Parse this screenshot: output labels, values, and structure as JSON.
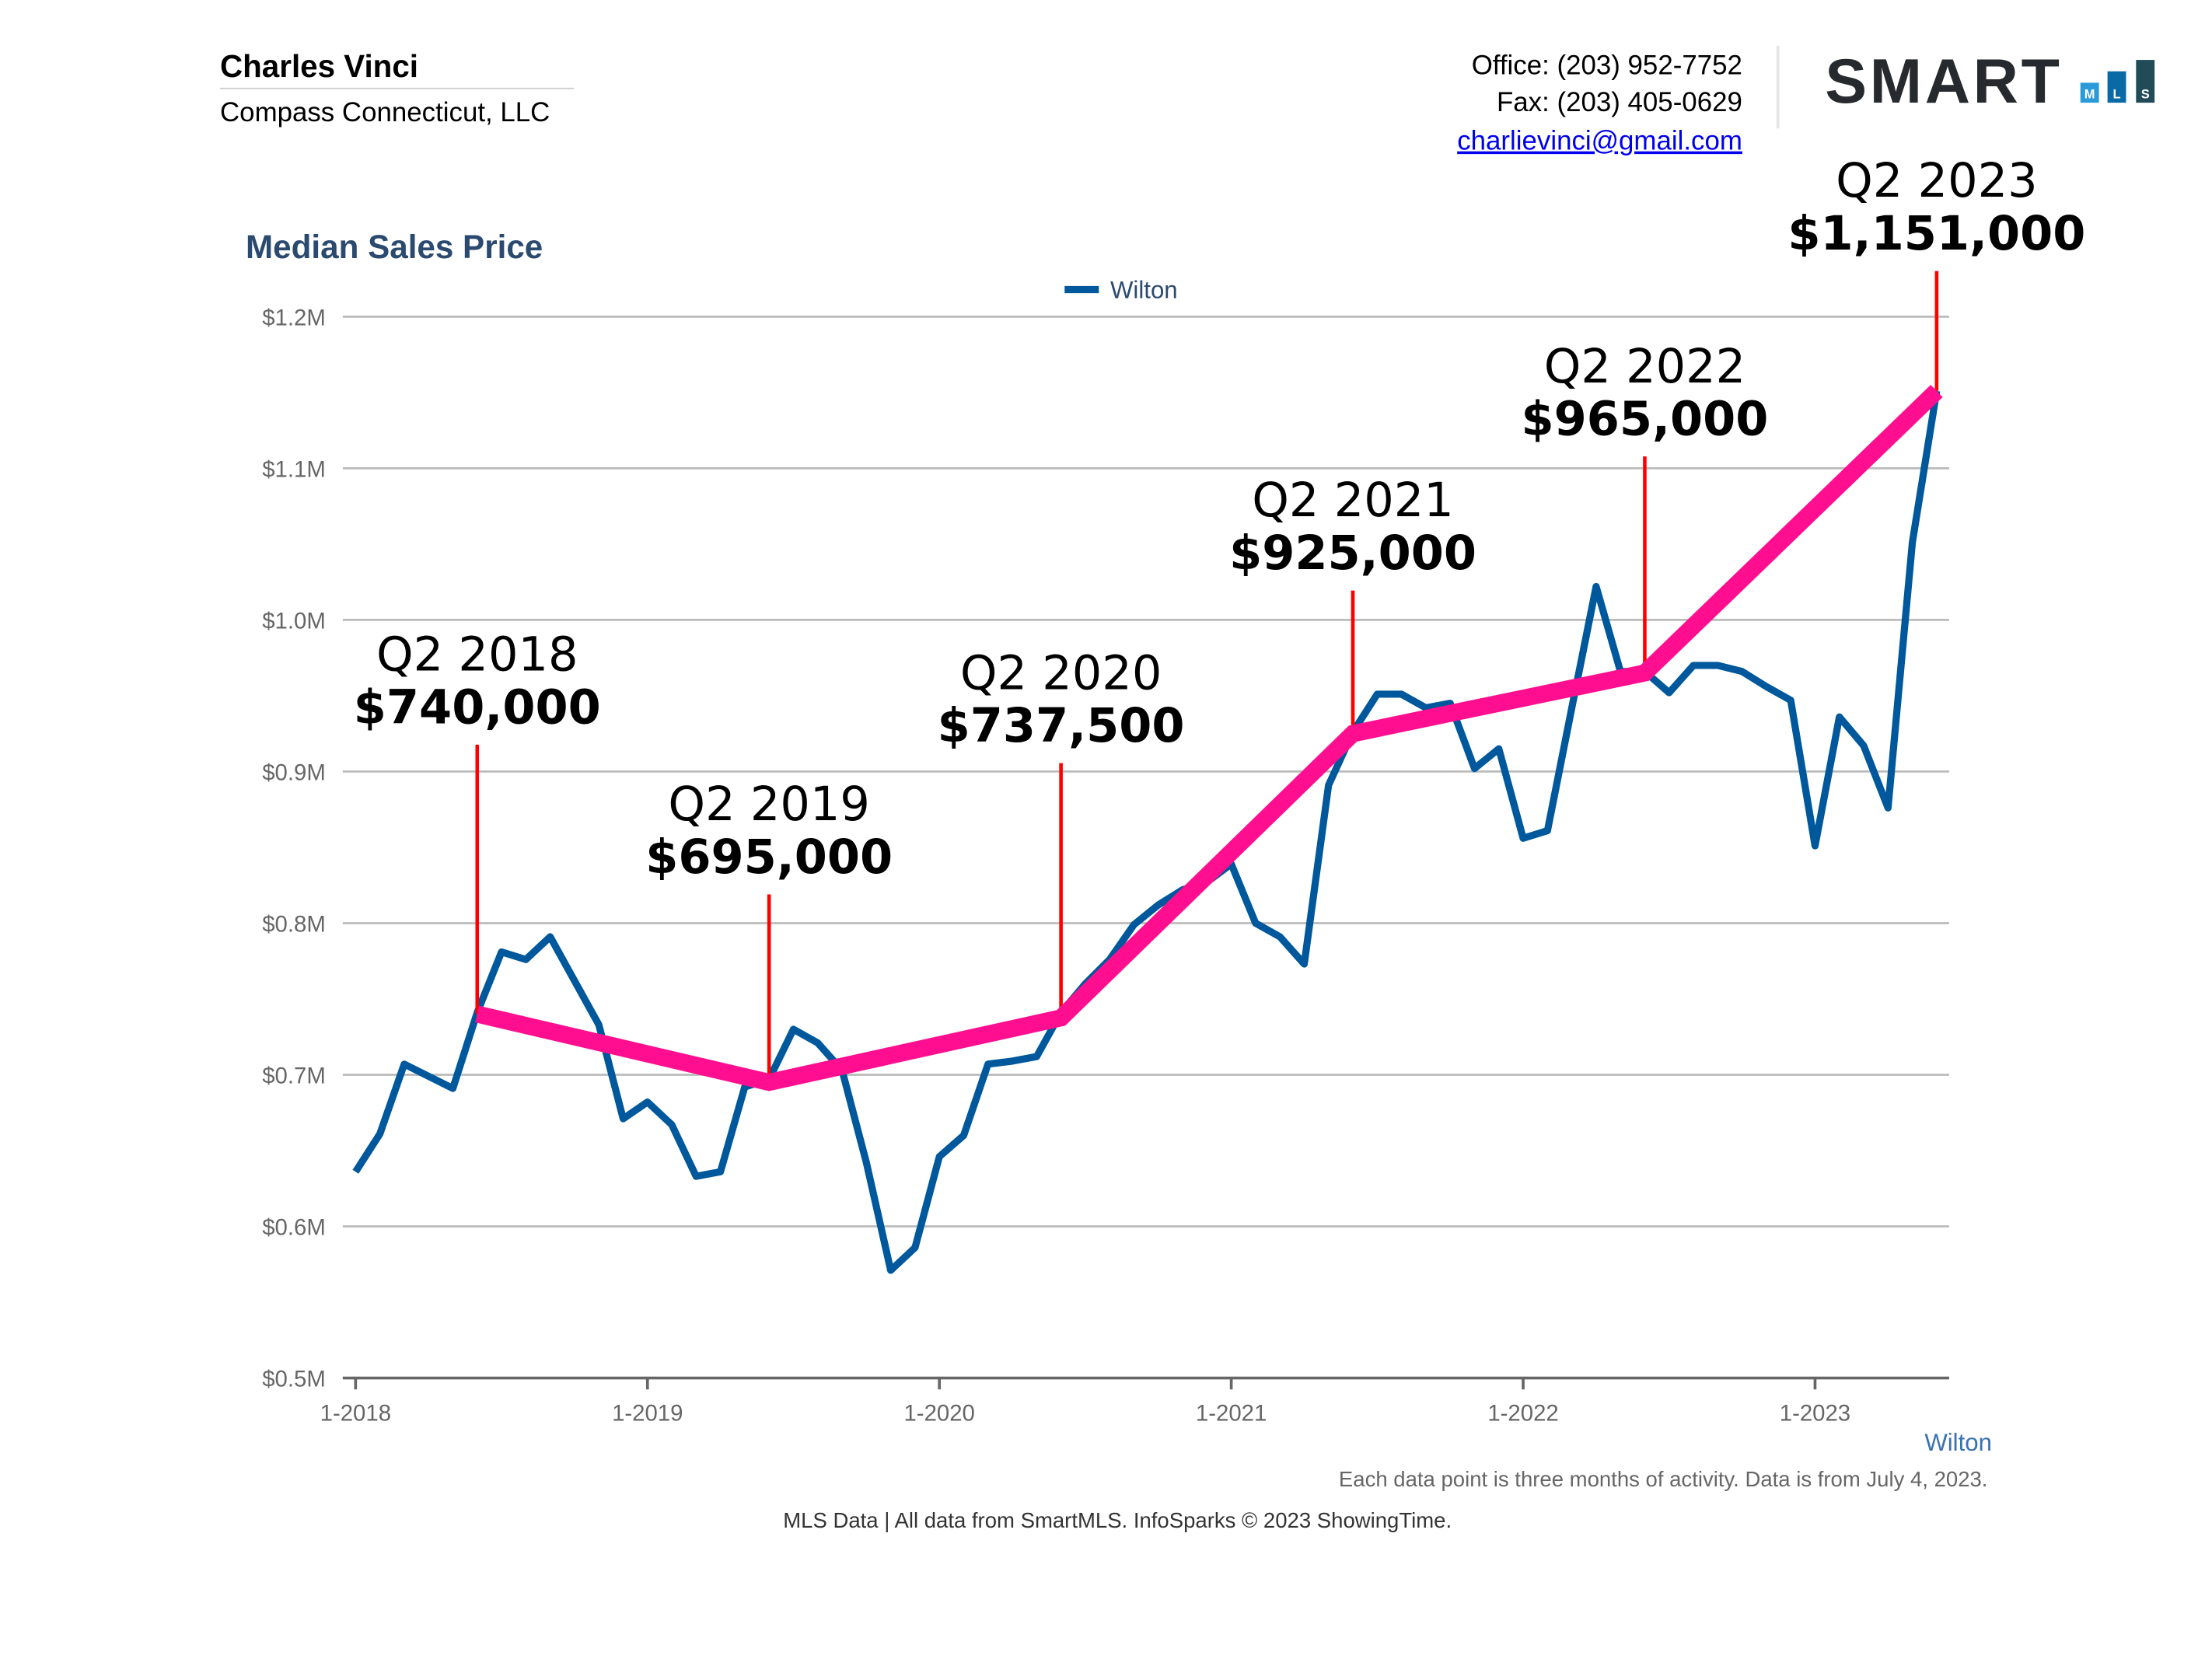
{
  "header": {
    "agent_name": "Charles Vinci",
    "company": "Compass Connecticut, LLC",
    "office": "Office: (203) 952-7752",
    "fax": "Fax: (203) 405-0629",
    "email": "charlievinci@gmail.com",
    "logo": {
      "word": "SMART",
      "letters": [
        "M",
        "L",
        "S"
      ],
      "colors": [
        "#2a9ad8",
        "#0a6aa5",
        "#224b5a"
      ]
    }
  },
  "chart_data": {
    "type": "line",
    "title": "Median Sales Price",
    "legend": {
      "label": "Wilton",
      "placement": "top-center"
    },
    "series_label_bottom": "Wilton",
    "ylim": [
      500000,
      1200000
    ],
    "y_ticks": [
      "$0.5M",
      "$0.6M",
      "$0.7M",
      "$0.8M",
      "$0.9M",
      "$1.0M",
      "$1.1M",
      "$1.2M"
    ],
    "x_ticks": [
      "1-2018",
      "1-2019",
      "1-2020",
      "1-2021",
      "1-2022",
      "1-2023"
    ],
    "grid": true,
    "colors": {
      "series": "#00589c",
      "trend": "#ff0f8f",
      "marker": "#ff0000",
      "title": "#2b4a6f"
    },
    "series": [
      {
        "name": "Wilton",
        "start": "2018-01",
        "frequency": "monthly",
        "values": [
          636000,
          661000,
          707000,
          699000,
          691000,
          741000,
          781000,
          776000,
          791000,
          762000,
          733000,
          671000,
          682000,
          667000,
          633000,
          636000,
          692000,
          697000,
          730000,
          721000,
          703000,
          642000,
          571000,
          586000,
          646000,
          660000,
          707000,
          709000,
          712000,
          741000,
          760000,
          776000,
          799000,
          812000,
          822000,
          827000,
          839000,
          800000,
          791000,
          773000,
          891000,
          926000,
          951000,
          951000,
          942000,
          945000,
          902000,
          915000,
          856000,
          861000,
          942000,
          1022000,
          966000,
          966000,
          952000,
          970000,
          970000,
          966000,
          956000,
          947000,
          851000,
          936000,
          917000,
          876000,
          1051000,
          1151000
        ]
      }
    ],
    "annotations": [
      {
        "period": "Q2 2018",
        "month": "2018-06",
        "value": 740000,
        "label": "$740,000"
      },
      {
        "period": "Q2 2019",
        "month": "2019-06",
        "value": 695000,
        "label": "$695,000"
      },
      {
        "period": "Q2 2020",
        "month": "2020-06",
        "value": 737500,
        "label": "$737,500"
      },
      {
        "period": "Q2 2021",
        "month": "2021-06",
        "value": 925000,
        "label": "$925,000"
      },
      {
        "period": "Q2 2022",
        "month": "2022-06",
        "value": 965000,
        "label": "$965,000"
      },
      {
        "period": "Q2 2023",
        "month": "2023-06",
        "value": 1151000,
        "label": "$1,151,000"
      }
    ]
  },
  "footer": {
    "note": "Each data point is three months of activity. Data is from July 4, 2023.",
    "source": "MLS Data | All data from SmartMLS. InfoSparks © 2023 ShowingTime."
  }
}
